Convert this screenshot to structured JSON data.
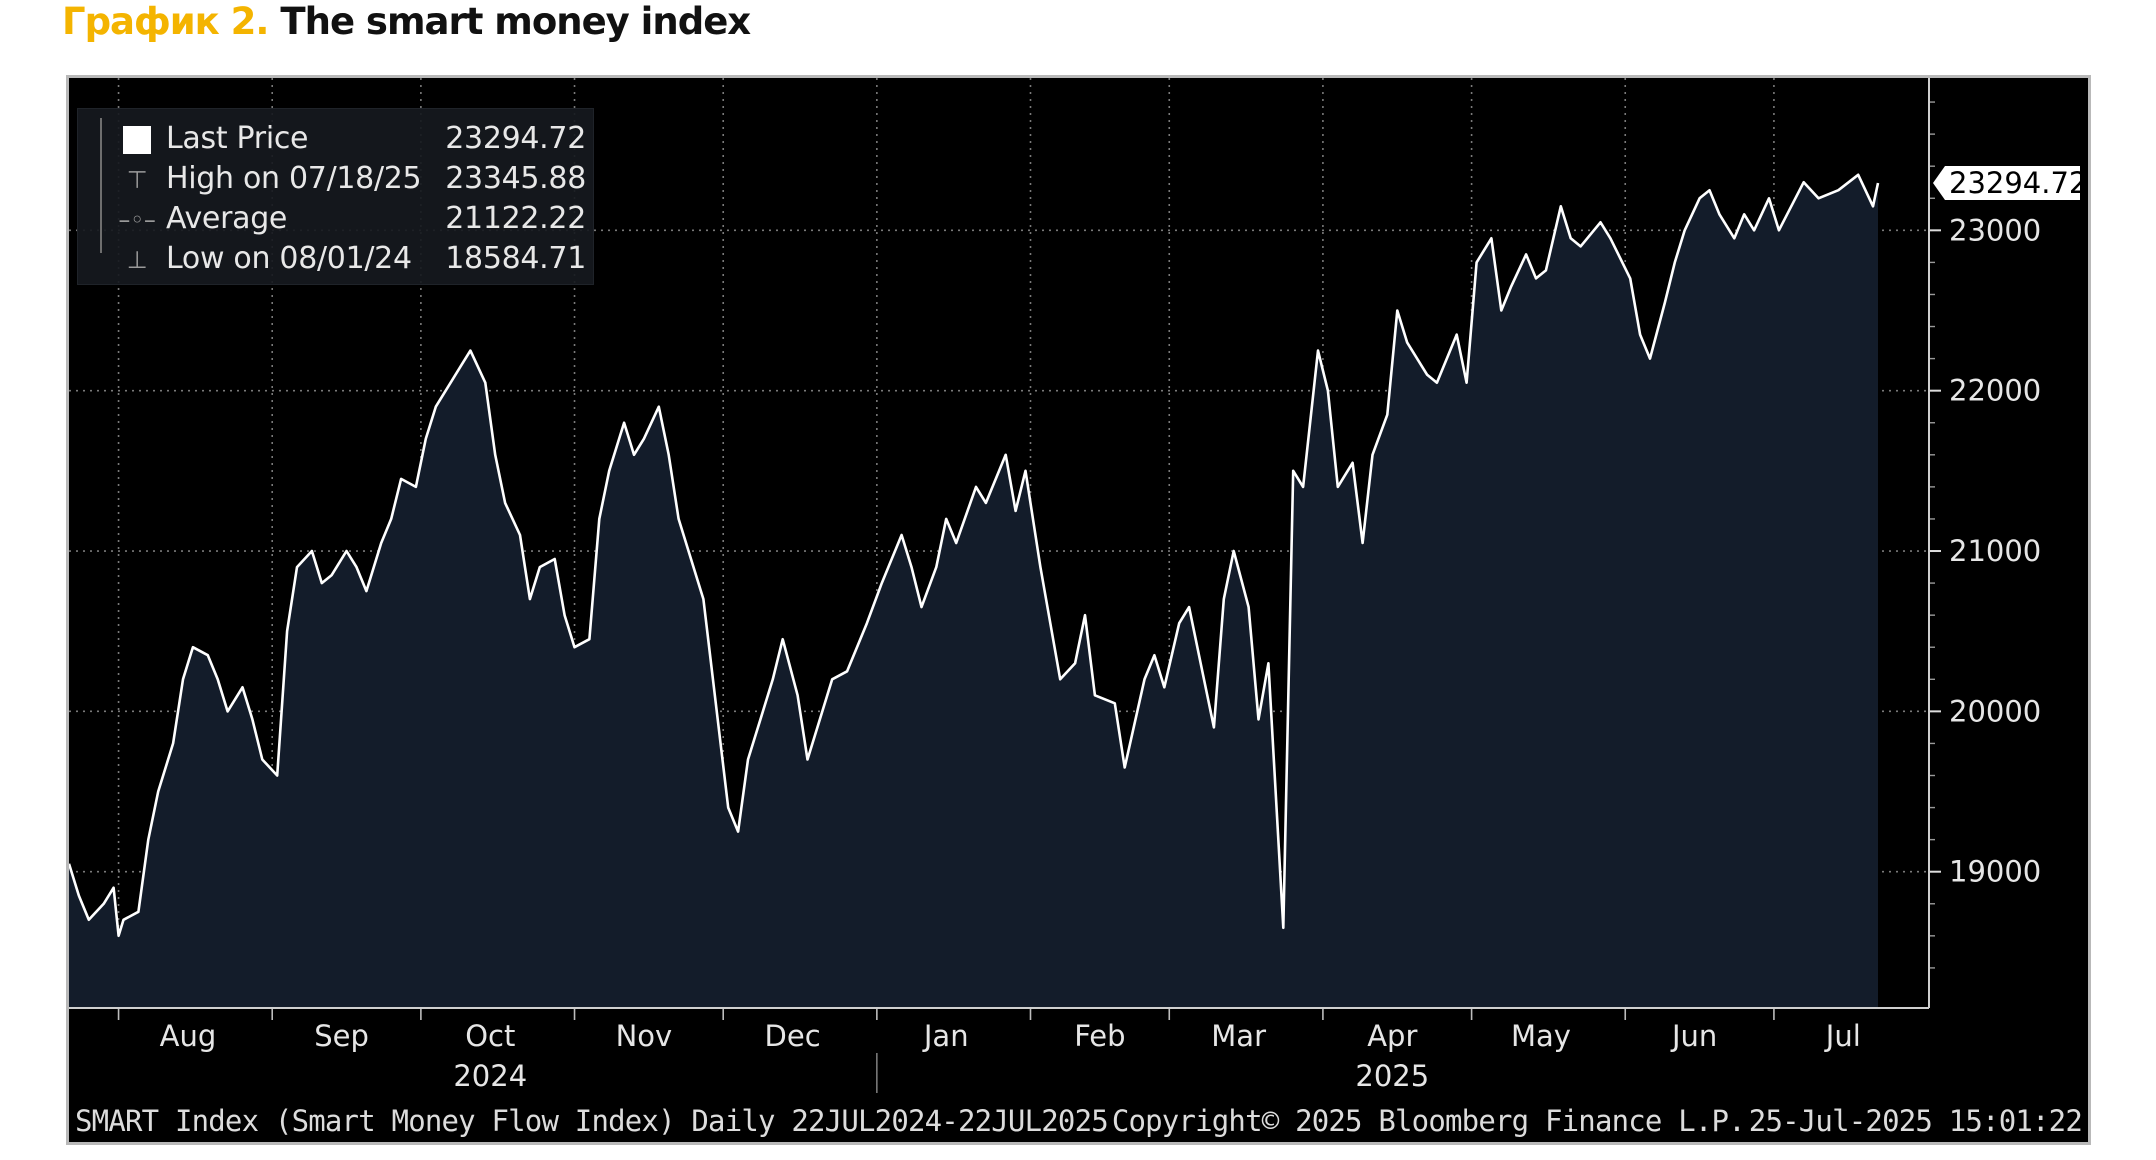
{
  "header": {
    "prefix": "График 2.",
    "title": "The smart money index"
  },
  "legend": {
    "items": [
      {
        "icon": "white-square-icon",
        "label": "Last Price",
        "value": "23294.72"
      },
      {
        "icon": "high-marker-icon",
        "label": "High on 07/18/25",
        "value": "23345.88"
      },
      {
        "icon": "average-marker-icon",
        "label": "Average",
        "value": "21122.22"
      },
      {
        "icon": "low-marker-icon",
        "label": "Low on 08/01/24",
        "value": "18584.71"
      }
    ]
  },
  "last_price_tag": "23294.72",
  "footer": {
    "series_info": "SMART Index (Smart Money Flow Index)  Daily 22JUL2024-22JUL2025",
    "copyright": "Copyright© 2025 Bloomberg Finance L.P.",
    "timestamp": "25-Jul-2025 15:01:22"
  },
  "colors": {
    "background": "#000000",
    "area_fill": "#131c2a",
    "line": "#ffffff",
    "grid": "#7a7a7a",
    "heading_accent": "#f4b400"
  },
  "chart_data": {
    "type": "area",
    "ylim": [
      18150,
      23950
    ],
    "y_ticks": [
      "19000",
      "20000",
      "21000",
      "22000",
      "23000"
    ],
    "x_date_range": [
      "2024-07-22",
      "2025-07-22"
    ],
    "months": [
      {
        "label": "Aug",
        "date": "2024-08-15"
      },
      {
        "label": "Sep",
        "date": "2024-09-15"
      },
      {
        "label": "Oct",
        "date": "2024-10-15"
      },
      {
        "label": "Nov",
        "date": "2024-11-15"
      },
      {
        "label": "Dec",
        "date": "2024-12-15"
      },
      {
        "label": "Jan",
        "date": "2025-01-15"
      },
      {
        "label": "Feb",
        "date": "2025-02-15"
      },
      {
        "label": "Mar",
        "date": "2025-03-15"
      },
      {
        "label": "Apr",
        "date": "2025-04-15"
      },
      {
        "label": "May",
        "date": "2025-05-15"
      },
      {
        "label": "Jun",
        "date": "2025-06-15"
      },
      {
        "label": "Jul",
        "date": "2025-07-15"
      }
    ],
    "years": [
      {
        "label": "2024",
        "date": "2024-10-15"
      },
      {
        "label": "2025",
        "date": "2025-04-15"
      }
    ],
    "series": [
      {
        "values": [
          [
            "2024-07-22",
            19050
          ],
          [
            "2024-07-24",
            18850
          ],
          [
            "2024-07-26",
            18700
          ],
          [
            "2024-07-29",
            18800
          ],
          [
            "2024-07-31",
            18900
          ],
          [
            "2024-08-01",
            18600
          ],
          [
            "2024-08-02",
            18700
          ],
          [
            "2024-08-05",
            18750
          ],
          [
            "2024-08-07",
            19200
          ],
          [
            "2024-08-09",
            19500
          ],
          [
            "2024-08-12",
            19800
          ],
          [
            "2024-08-14",
            20200
          ],
          [
            "2024-08-16",
            20400
          ],
          [
            "2024-08-19",
            20350
          ],
          [
            "2024-08-21",
            20200
          ],
          [
            "2024-08-23",
            20000
          ],
          [
            "2024-08-26",
            20150
          ],
          [
            "2024-08-28",
            19950
          ],
          [
            "2024-08-30",
            19700
          ],
          [
            "2024-09-02",
            19600
          ],
          [
            "2024-09-04",
            20500
          ],
          [
            "2024-09-06",
            20900
          ],
          [
            "2024-09-09",
            21000
          ],
          [
            "2024-09-11",
            20800
          ],
          [
            "2024-09-13",
            20850
          ],
          [
            "2024-09-16",
            21000
          ],
          [
            "2024-09-18",
            20900
          ],
          [
            "2024-09-20",
            20750
          ],
          [
            "2024-09-23",
            21050
          ],
          [
            "2024-09-25",
            21200
          ],
          [
            "2024-09-27",
            21450
          ],
          [
            "2024-09-30",
            21400
          ],
          [
            "2024-10-02",
            21700
          ],
          [
            "2024-10-04",
            21900
          ],
          [
            "2024-10-07",
            22050
          ],
          [
            "2024-10-09",
            22150
          ],
          [
            "2024-10-11",
            22250
          ],
          [
            "2024-10-14",
            22050
          ],
          [
            "2024-10-16",
            21600
          ],
          [
            "2024-10-18",
            21300
          ],
          [
            "2024-10-21",
            21100
          ],
          [
            "2024-10-23",
            20700
          ],
          [
            "2024-10-25",
            20900
          ],
          [
            "2024-10-28",
            20950
          ],
          [
            "2024-10-30",
            20600
          ],
          [
            "2024-11-01",
            20400
          ],
          [
            "2024-11-04",
            20450
          ],
          [
            "2024-11-06",
            21200
          ],
          [
            "2024-11-08",
            21500
          ],
          [
            "2024-11-11",
            21800
          ],
          [
            "2024-11-13",
            21600
          ],
          [
            "2024-11-15",
            21700
          ],
          [
            "2024-11-18",
            21900
          ],
          [
            "2024-11-20",
            21600
          ],
          [
            "2024-11-22",
            21200
          ],
          [
            "2024-11-25",
            20900
          ],
          [
            "2024-11-27",
            20700
          ],
          [
            "2024-12-02",
            19400
          ],
          [
            "2024-12-04",
            19250
          ],
          [
            "2024-12-06",
            19700
          ],
          [
            "2024-12-09",
            20000
          ],
          [
            "2024-12-11",
            20200
          ],
          [
            "2024-12-13",
            20450
          ],
          [
            "2024-12-16",
            20100
          ],
          [
            "2024-12-18",
            19700
          ],
          [
            "2024-12-20",
            19900
          ],
          [
            "2024-12-23",
            20200
          ],
          [
            "2024-12-26",
            20250
          ],
          [
            "2024-12-30",
            20550
          ],
          [
            "2025-01-02",
            20800
          ],
          [
            "2025-01-06",
            21100
          ],
          [
            "2025-01-08",
            20900
          ],
          [
            "2025-01-10",
            20650
          ],
          [
            "2025-01-13",
            20900
          ],
          [
            "2025-01-15",
            21200
          ],
          [
            "2025-01-17",
            21050
          ],
          [
            "2025-01-21",
            21400
          ],
          [
            "2025-01-23",
            21300
          ],
          [
            "2025-01-27",
            21600
          ],
          [
            "2025-01-29",
            21250
          ],
          [
            "2025-01-31",
            21500
          ],
          [
            "2025-02-03",
            20900
          ],
          [
            "2025-02-05",
            20550
          ],
          [
            "2025-02-07",
            20200
          ],
          [
            "2025-02-10",
            20300
          ],
          [
            "2025-02-12",
            20600
          ],
          [
            "2025-02-14",
            20100
          ],
          [
            "2025-02-18",
            20050
          ],
          [
            "2025-02-20",
            19650
          ],
          [
            "2025-02-24",
            20200
          ],
          [
            "2025-02-26",
            20350
          ],
          [
            "2025-02-28",
            20150
          ],
          [
            "2025-03-03",
            20550
          ],
          [
            "2025-03-05",
            20650
          ],
          [
            "2025-03-07",
            20350
          ],
          [
            "2025-03-10",
            19900
          ],
          [
            "2025-03-12",
            20700
          ],
          [
            "2025-03-14",
            21000
          ],
          [
            "2025-03-17",
            20650
          ],
          [
            "2025-03-19",
            19950
          ],
          [
            "2025-03-21",
            20300
          ],
          [
            "2025-03-24",
            18650
          ],
          [
            "2025-03-26",
            21500
          ],
          [
            "2025-03-28",
            21400
          ],
          [
            "2025-03-31",
            22250
          ],
          [
            "2025-04-02",
            22000
          ],
          [
            "2025-04-04",
            21400
          ],
          [
            "2025-04-07",
            21550
          ],
          [
            "2025-04-09",
            21050
          ],
          [
            "2025-04-11",
            21600
          ],
          [
            "2025-04-14",
            21850
          ],
          [
            "2025-04-16",
            22500
          ],
          [
            "2025-04-18",
            22300
          ],
          [
            "2025-04-22",
            22100
          ],
          [
            "2025-04-24",
            22050
          ],
          [
            "2025-04-28",
            22350
          ],
          [
            "2025-04-30",
            22050
          ],
          [
            "2025-05-02",
            22800
          ],
          [
            "2025-05-05",
            22950
          ],
          [
            "2025-05-07",
            22500
          ],
          [
            "2025-05-09",
            22650
          ],
          [
            "2025-05-12",
            22850
          ],
          [
            "2025-05-14",
            22700
          ],
          [
            "2025-05-16",
            22750
          ],
          [
            "2025-05-19",
            23150
          ],
          [
            "2025-05-21",
            22950
          ],
          [
            "2025-05-23",
            22900
          ],
          [
            "2025-05-27",
            23050
          ],
          [
            "2025-05-29",
            22950
          ],
          [
            "2025-06-02",
            22700
          ],
          [
            "2025-06-04",
            22350
          ],
          [
            "2025-06-06",
            22200
          ],
          [
            "2025-06-09",
            22550
          ],
          [
            "2025-06-11",
            22800
          ],
          [
            "2025-06-13",
            23000
          ],
          [
            "2025-06-16",
            23200
          ],
          [
            "2025-06-18",
            23250
          ],
          [
            "2025-06-20",
            23100
          ],
          [
            "2025-06-23",
            22950
          ],
          [
            "2025-06-25",
            23100
          ],
          [
            "2025-06-27",
            23000
          ],
          [
            "2025-06-30",
            23200
          ],
          [
            "2025-07-02",
            23000
          ],
          [
            "2025-07-07",
            23300
          ],
          [
            "2025-07-10",
            23200
          ],
          [
            "2025-07-14",
            23250
          ],
          [
            "2025-07-18",
            23346
          ],
          [
            "2025-07-21",
            23150
          ],
          [
            "2025-07-22",
            23295
          ]
        ]
      }
    ]
  }
}
